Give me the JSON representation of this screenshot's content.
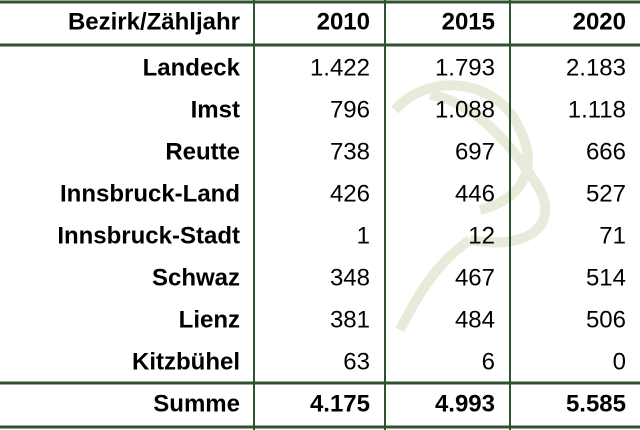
{
  "table": {
    "header": [
      "Bezirk/Zähljahr",
      "2010",
      "2015",
      "2020"
    ],
    "rows": [
      [
        "Landeck",
        "1.422",
        "1.793",
        "2.183"
      ],
      [
        "Imst",
        "796",
        "1.088",
        "1.118"
      ],
      [
        "Reutte",
        "738",
        "697",
        "666"
      ],
      [
        "Innsbruck-Land",
        "426",
        "446",
        "527"
      ],
      [
        "Innsbruck-Stadt",
        "1",
        "12",
        "71"
      ],
      [
        "Schwaz",
        "348",
        "467",
        "514"
      ],
      [
        "Lienz",
        "381",
        "484",
        "506"
      ],
      [
        "Kitzbühel",
        "63",
        "6",
        "0"
      ]
    ],
    "total": [
      "Summe",
      "4.175",
      "4.993",
      "5.585"
    ]
  }
}
